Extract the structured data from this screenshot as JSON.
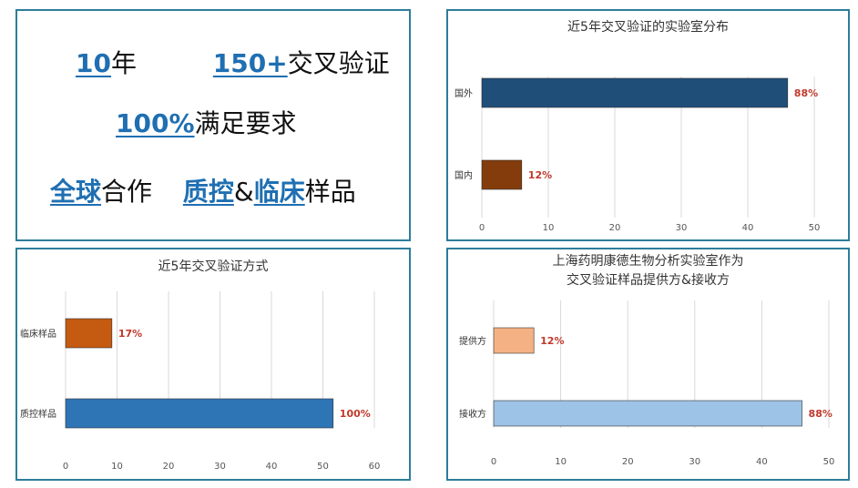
{
  "highlights": {
    "line1": {
      "a_num": "10",
      "a_text": "年",
      "b_num": "150+",
      "b_text": "交叉验证"
    },
    "line2": {
      "num": "100%",
      "text": "满足要求"
    },
    "line3": {
      "a_hl": "全球",
      "a_text": "合作",
      "b_hl1": "质控",
      "b_amp": "&",
      "b_hl2": "临床",
      "b_text": "样品"
    },
    "highlight_color": "#1f6fb2"
  },
  "chart_data": [
    {
      "type": "bar",
      "orientation": "horizontal",
      "title": "近5年交叉验证的实验室分布",
      "categories": [
        "国外",
        "国内"
      ],
      "values": [
        46,
        6
      ],
      "data_labels": [
        "88%",
        "12%"
      ],
      "colors": [
        "#1f4e79",
        "#843c0c"
      ],
      "xlim": [
        0,
        50
      ],
      "xticks": [
        0,
        10,
        20,
        30,
        40,
        50
      ],
      "grid": true
    },
    {
      "type": "bar",
      "orientation": "horizontal",
      "title": "近5年交叉验证方式",
      "categories": [
        "临床样品",
        "质控样品"
      ],
      "values": [
        9,
        52
      ],
      "data_labels": [
        "17%",
        "100%"
      ],
      "colors": [
        "#c55a11",
        "#2e75b6"
      ],
      "xlim": [
        0,
        60
      ],
      "xticks": [
        0,
        10,
        20,
        30,
        40,
        50,
        60
      ],
      "grid": true
    },
    {
      "type": "bar",
      "orientation": "horizontal",
      "title": [
        "上海药明康德生物分析实验室作为",
        "交叉验证样品提供方&接收方"
      ],
      "categories": [
        "提供方",
        "接收方"
      ],
      "values": [
        6,
        46
      ],
      "data_labels": [
        "12%",
        "88%"
      ],
      "colors": [
        "#f4b183",
        "#9dc3e6"
      ],
      "xlim": [
        0,
        50
      ],
      "xticks": [
        0,
        10,
        20,
        30,
        40,
        50
      ],
      "grid": true
    }
  ]
}
